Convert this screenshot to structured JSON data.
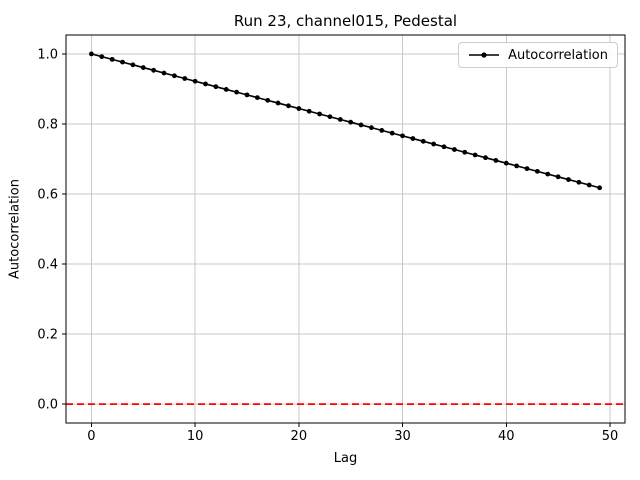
{
  "title": "Run 23, channel015, Pedestal",
  "legend": {
    "items": [
      {
        "label": "Autocorrelation",
        "line_color": "#000000",
        "marker": "dot"
      }
    ],
    "position": "upper right"
  },
  "colors": {
    "series_line": "#000000",
    "zero_line": "#ff0000",
    "grid": "#c8c8c8",
    "spine": "#000000",
    "legend_border": "#cccccc",
    "background": "#ffffff"
  },
  "chart_data": {
    "type": "line",
    "title": "Run 23, channel015, Pedestal",
    "xlabel": "Lag",
    "ylabel": "Autocorrelation",
    "grid": true,
    "legend_position": "upper right",
    "xlim": [
      -2.45,
      51.45
    ],
    "ylim": [
      -0.054,
      1.054
    ],
    "xticks": [
      0,
      10,
      20,
      30,
      40,
      50
    ],
    "yticks": [
      0.0,
      0.2,
      0.4,
      0.6,
      0.8,
      1.0
    ],
    "x": [
      0,
      1,
      2,
      3,
      4,
      5,
      6,
      7,
      8,
      9,
      10,
      11,
      12,
      13,
      14,
      15,
      16,
      17,
      18,
      19,
      20,
      21,
      22,
      23,
      24,
      25,
      26,
      27,
      28,
      29,
      30,
      31,
      32,
      33,
      34,
      35,
      36,
      37,
      38,
      39,
      40,
      41,
      42,
      43,
      44,
      45,
      46,
      47,
      48,
      49
    ],
    "series": [
      {
        "name": "Autocorrelation",
        "color": "#000000",
        "marker": "dot",
        "values": [
          1.0,
          0.9922,
          0.9844,
          0.9766,
          0.9688,
          0.961,
          0.9532,
          0.9454,
          0.9376,
          0.9298,
          0.922,
          0.9142,
          0.9064,
          0.8986,
          0.8908,
          0.883,
          0.8752,
          0.8674,
          0.8596,
          0.8518,
          0.844,
          0.8362,
          0.8284,
          0.8206,
          0.8128,
          0.805,
          0.7972,
          0.7894,
          0.7816,
          0.7738,
          0.766,
          0.7582,
          0.7504,
          0.7426,
          0.7348,
          0.727,
          0.7192,
          0.7114,
          0.7036,
          0.6958,
          0.688,
          0.6802,
          0.6724,
          0.6646,
          0.6568,
          0.649,
          0.6412,
          0.6334,
          0.6256,
          0.6178
        ]
      }
    ],
    "zero_line": {
      "y": 0.0,
      "color": "#ff0000",
      "style": "dashed"
    }
  }
}
